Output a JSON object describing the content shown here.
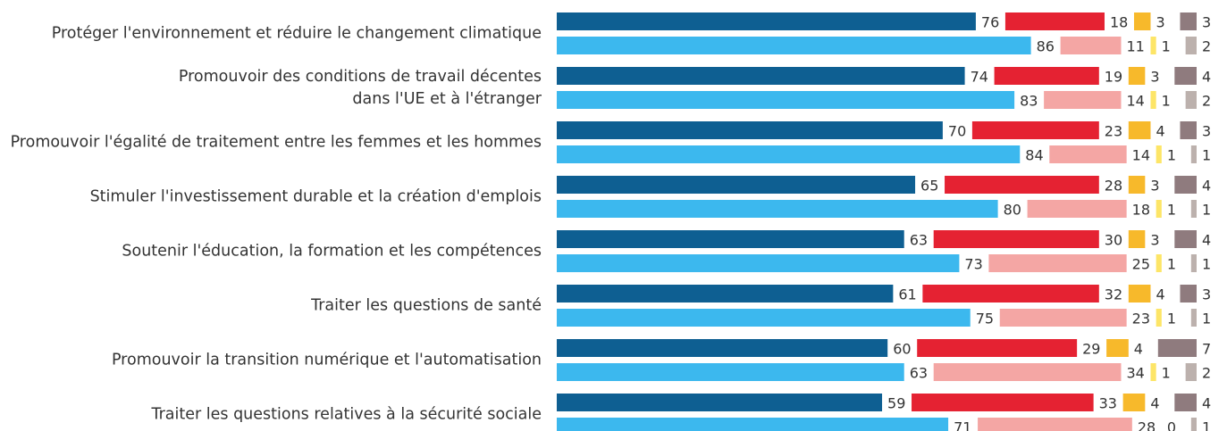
{
  "chart_data": {
    "type": "bar",
    "orientation": "horizontal",
    "stacked": true,
    "categories": [
      "Protéger l'environnement et réduire le changement climatique",
      "Promouvoir des conditions de travail décentes\ndans l'UE et à l'étranger",
      "Promouvoir l'égalité de traitement entre les femmes et les hommes",
      "Stimuler l'investissement durable et la création d'emplois",
      "Soutenir l'éducation, la formation et les compétences",
      "Traiter les questions de santé",
      "Promouvoir la transition numérique et l'automatisation",
      "Traiter les questions relatives à la sécurité sociale"
    ],
    "rows": [
      {
        "series": [
          {
            "color": "#0e5f92",
            "values": [
              76,
              74,
              70,
              65,
              63,
              61,
              60,
              59
            ]
          },
          {
            "color": "#e52232",
            "values": [
              18,
              19,
              23,
              28,
              30,
              32,
              29,
              33
            ]
          },
          {
            "color": "#f7b92b",
            "values": [
              3,
              3,
              4,
              3,
              3,
              4,
              4,
              4
            ]
          },
          {
            "color": "#8f7b7e",
            "values": [
              3,
              4,
              3,
              4,
              4,
              3,
              7,
              4
            ]
          }
        ]
      },
      {
        "series": [
          {
            "color": "#3cb8ee",
            "values": [
              86,
              83,
              84,
              80,
              73,
              75,
              63,
              71
            ]
          },
          {
            "color": "#f4a6a4",
            "values": [
              11,
              14,
              14,
              18,
              25,
              23,
              34,
              28
            ]
          },
          {
            "color": "#fde567",
            "values": [
              1,
              1,
              1,
              1,
              1,
              1,
              1,
              0
            ]
          },
          {
            "color": "#bcb1ad",
            "values": [
              2,
              2,
              1,
              1,
              1,
              1,
              2,
              1
            ]
          }
        ]
      }
    ]
  }
}
